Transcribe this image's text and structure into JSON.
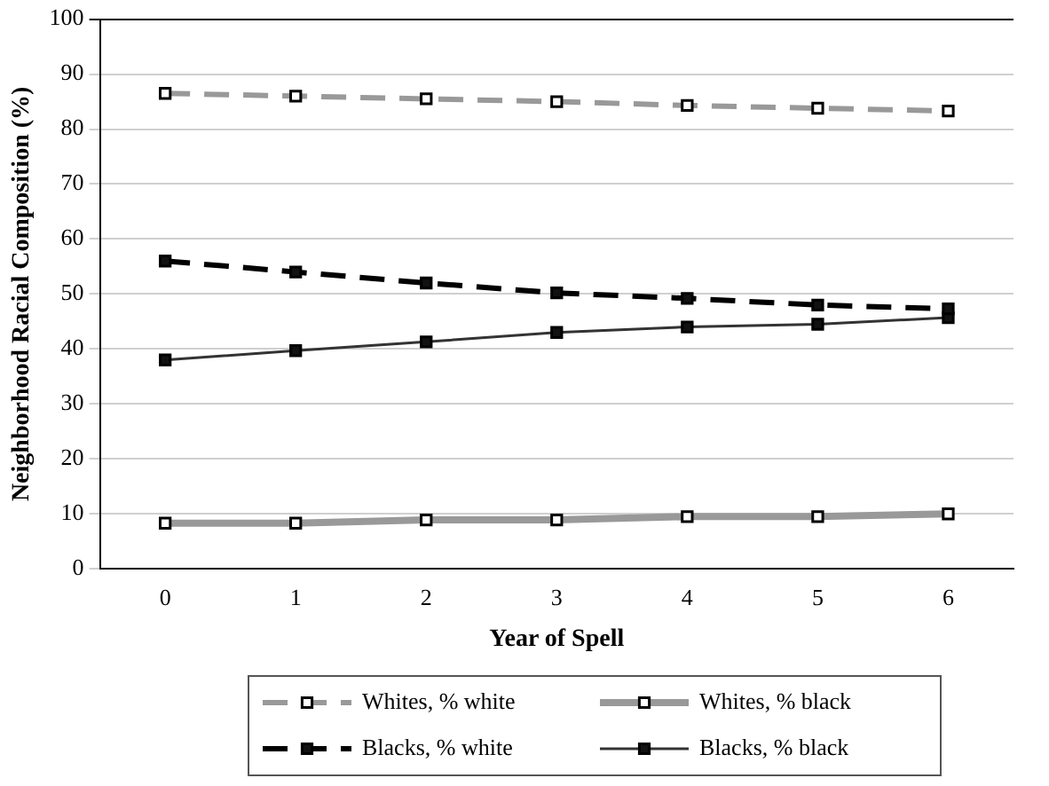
{
  "chart_data": {
    "type": "line",
    "xlabel": "Year of Spell",
    "ylabel": "Neighborhood Racial Composition (%)",
    "categories": [
      "0",
      "1",
      "2",
      "3",
      "4",
      "5",
      "6"
    ],
    "ylim": [
      0,
      100
    ],
    "yticks": [
      0,
      10,
      20,
      30,
      40,
      50,
      60,
      70,
      80,
      90,
      100
    ],
    "grid": "y",
    "legend": "bottom",
    "marker": "square",
    "series": [
      {
        "name": "Whites, % white",
        "color": "#999999",
        "line_style": "dashed",
        "values": [
          86.5,
          86,
          85.5,
          85,
          84.3,
          83.8,
          83.3
        ]
      },
      {
        "name": "Whites, % black",
        "color": "#999999",
        "line_style": "solid",
        "values": [
          8.3,
          8.3,
          8.9,
          8.9,
          9.5,
          9.5,
          10
        ]
      },
      {
        "name": "Blacks, % white",
        "color": "#000000",
        "line_style": "dashed",
        "values": [
          56,
          54,
          52,
          50.2,
          49.2,
          48,
          47.3
        ]
      },
      {
        "name": "Blacks, % black",
        "color": "#333333",
        "line_style": "solid",
        "values": [
          38,
          39.7,
          41.3,
          43,
          44,
          44.5,
          45.7
        ]
      }
    ]
  }
}
